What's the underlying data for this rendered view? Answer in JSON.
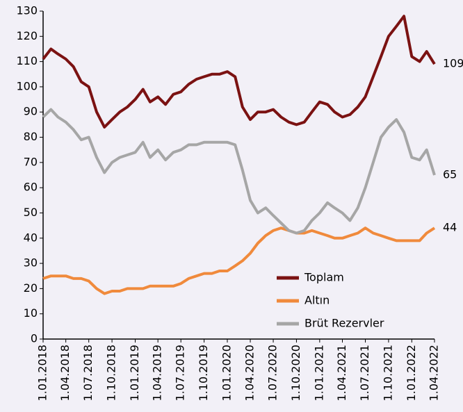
{
  "chart_data": {
    "type": "line",
    "x": [
      "1.01.2018",
      "1.02.2018",
      "1.03.2018",
      "1.04.2018",
      "1.05.2018",
      "1.06.2018",
      "1.07.2018",
      "1.08.2018",
      "1.09.2018",
      "1.10.2018",
      "1.11.2018",
      "1.12.2018",
      "1.01.2019",
      "1.02.2019",
      "1.03.2019",
      "1.04.2019",
      "1.05.2019",
      "1.06.2019",
      "1.07.2019",
      "1.08.2019",
      "1.09.2019",
      "1.10.2019",
      "1.11.2019",
      "1.12.2019",
      "1.01.2020",
      "1.02.2020",
      "1.03.2020",
      "1.04.2020",
      "1.05.2020",
      "1.06.2020",
      "1.07.2020",
      "1.08.2020",
      "1.09.2020",
      "1.10.2020",
      "1.11.2020",
      "1.12.2020",
      "1.01.2021",
      "1.02.2021",
      "1.03.2021",
      "1.04.2021",
      "1.05.2021",
      "1.06.2021",
      "1.07.2021",
      "1.08.2021",
      "1.09.2021",
      "1.10.2021",
      "1.11.2021",
      "1.12.2021",
      "1.01.2022",
      "1.02.2022",
      "1.03.2022",
      "1.04.2022"
    ],
    "xticks": [
      "1.01.2018",
      "1.04.2018",
      "1.07.2018",
      "1.10.2018",
      "1.01.2019",
      "1.04.2019",
      "1.07.2019",
      "1.10.2019",
      "1.01.2020",
      "1.04.2020",
      "1.07.2020",
      "1.10.2020",
      "1.01.2021",
      "1.04.2021",
      "1.07.2021",
      "1.10.2021",
      "1.01.2022",
      "1.04.2022"
    ],
    "ylim": [
      0,
      130
    ],
    "yticks": [
      0,
      10,
      20,
      30,
      40,
      50,
      60,
      70,
      80,
      90,
      100,
      110,
      120,
      130
    ],
    "legend": "lower right",
    "series": [
      {
        "name": "Toplam",
        "color": "#7b1212",
        "values": [
          111,
          115,
          113,
          111,
          108,
          102,
          100,
          90,
          84,
          87,
          90,
          92,
          95,
          99,
          94,
          96,
          93,
          97,
          98,
          101,
          103,
          104,
          105,
          105,
          106,
          104,
          92,
          87,
          90,
          90,
          91,
          88,
          86,
          85,
          86,
          90,
          94,
          93,
          90,
          88,
          89,
          92,
          96,
          104,
          112,
          120,
          124,
          128,
          112,
          110,
          114,
          109
        ]
      },
      {
        "name": "Altın",
        "color": "#f08a3c",
        "values": [
          24,
          25,
          25,
          25,
          24,
          24,
          23,
          20,
          18,
          19,
          19,
          20,
          20,
          20,
          21,
          21,
          21,
          21,
          22,
          24,
          25,
          26,
          26,
          27,
          27,
          29,
          31,
          34,
          38,
          41,
          43,
          44,
          43,
          42,
          42,
          43,
          42,
          41,
          40,
          40,
          41,
          42,
          44,
          42,
          41,
          40,
          39,
          39,
          39,
          39,
          42,
          44
        ]
      },
      {
        "name": "Brüt Rezervler",
        "color": "#a6a6a6",
        "values": [
          88,
          91,
          88,
          86,
          83,
          79,
          80,
          72,
          66,
          70,
          72,
          73,
          74,
          78,
          72,
          75,
          71,
          74,
          75,
          77,
          77,
          78,
          78,
          78,
          78,
          77,
          67,
          55,
          50,
          52,
          49,
          46,
          43,
          42,
          43,
          47,
          50,
          54,
          52,
          50,
          47,
          52,
          60,
          70,
          80,
          84,
          87,
          82,
          72,
          71,
          75,
          65
        ]
      }
    ]
  }
}
